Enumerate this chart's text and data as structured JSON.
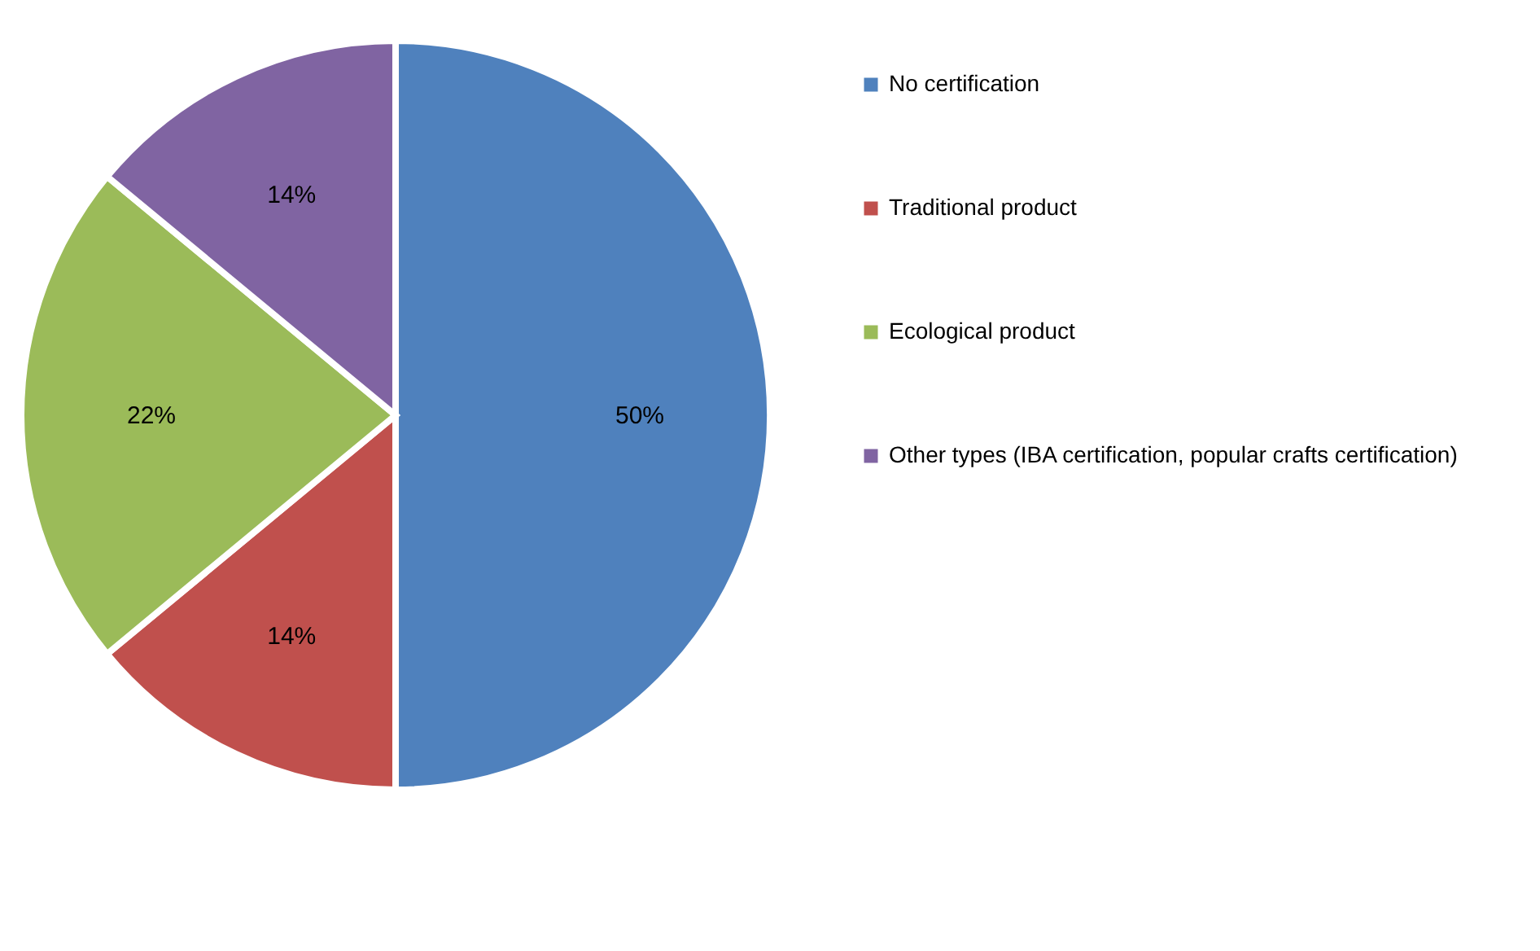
{
  "chart_data": {
    "type": "pie",
    "categories": [
      "No certification",
      "Traditional product",
      "Ecological product",
      "Other types (IBA certification, popular crafts certification)"
    ],
    "values": [
      50,
      14,
      22,
      14
    ],
    "colors": [
      "#4f81bd",
      "#c0504d",
      "#9bbb59",
      "#8064a2"
    ],
    "value_labels": [
      "50%",
      "14%",
      "22%",
      "14%"
    ],
    "legend": "right"
  }
}
